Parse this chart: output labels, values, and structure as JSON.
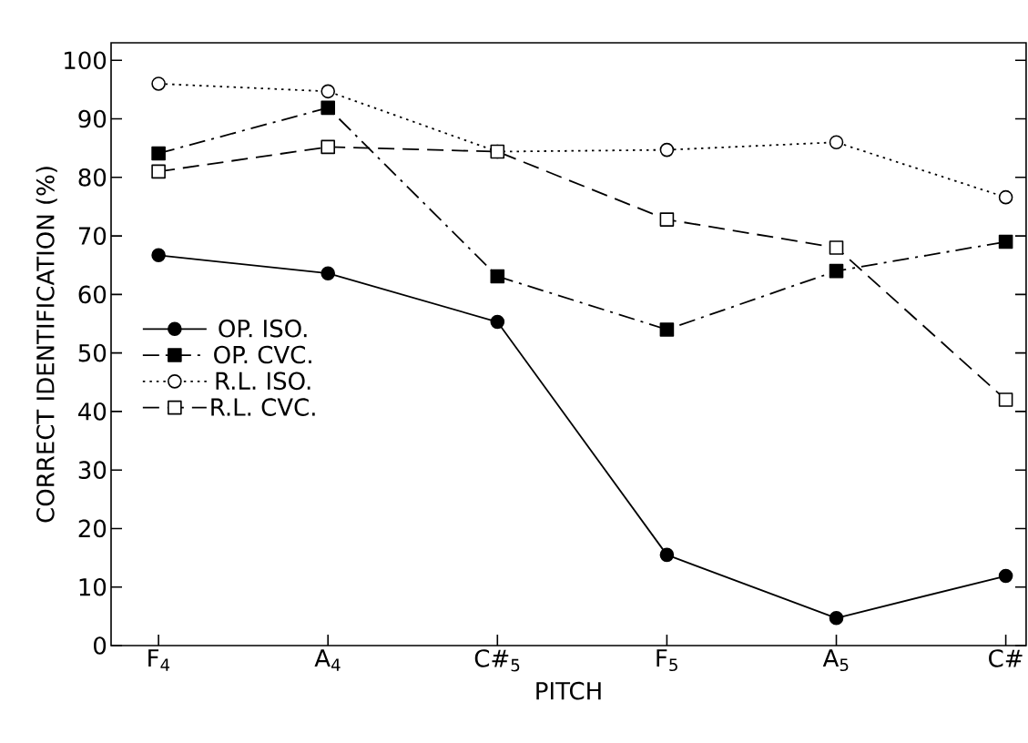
{
  "chart_data": {
    "type": "line",
    "xlabel": "PITCH",
    "ylabel": "CORRECT IDENTIFICATION (%)",
    "categories": [
      "F$_{4}$",
      "A$_{4}$",
      "C#$_{5}$",
      "F$_{5}$",
      "A$_{5}$",
      "C#"
    ],
    "ylim": [
      0,
      103
    ],
    "yticks": [
      0,
      10,
      20,
      30,
      40,
      50,
      60,
      70,
      80,
      90,
      100
    ],
    "grid": false,
    "legend": "left",
    "series": [
      {
        "name": "OP. ISO.",
        "color": "#000000",
        "marker": "circle",
        "line_style": "solid",
        "values": [
          66.7,
          63.6,
          55.3,
          15.5,
          4.7,
          11.9
        ]
      },
      {
        "name": "OP. CVC.",
        "color": "#000000",
        "marker": "square",
        "line_style": "dashdot",
        "values": [
          84.1,
          91.9,
          63.1,
          54,
          64,
          69
        ]
      },
      {
        "name": "R.L. ISO.",
        "color": "#000000",
        "marker": "circle-open",
        "line_style": "dotted",
        "values": [
          96,
          94.7,
          84.4,
          84.7,
          86,
          76.6
        ]
      },
      {
        "name": "R.L. CVC.",
        "color": "#000000",
        "marker": "square-open",
        "line_style": "dashed",
        "values": [
          81,
          85.2,
          84.4,
          72.8,
          68,
          42
        ]
      }
    ]
  }
}
